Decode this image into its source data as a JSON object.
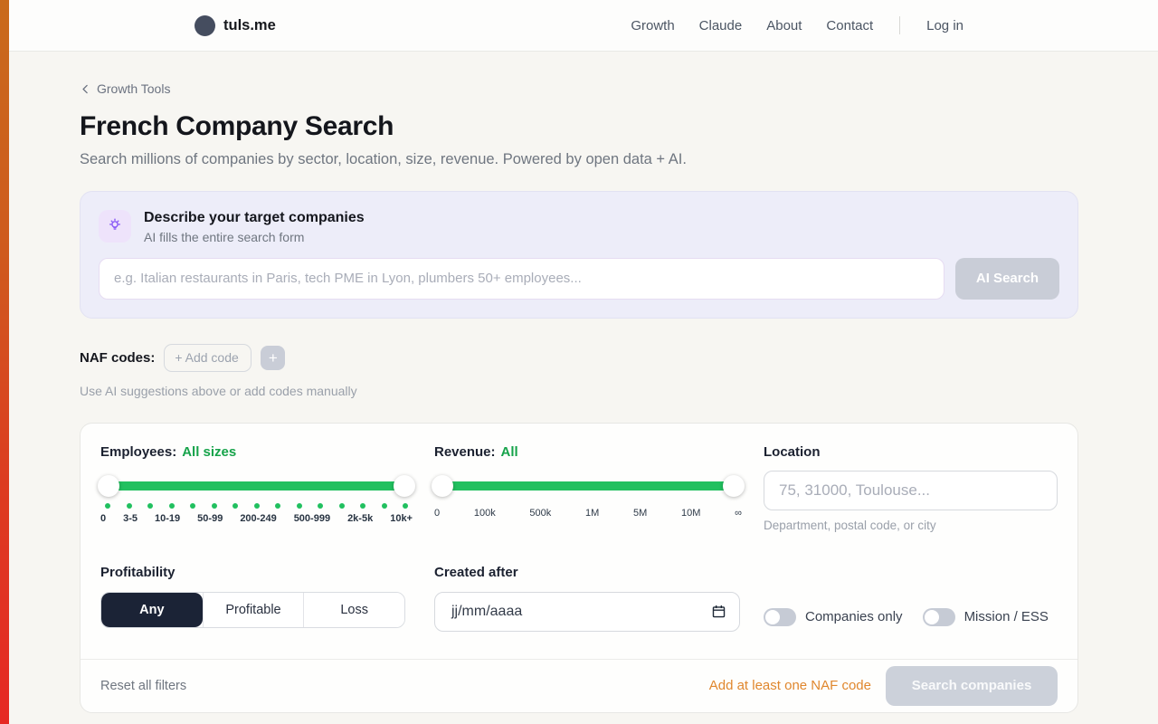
{
  "header": {
    "brand": "tuls.me",
    "nav": [
      {
        "label": "Growth"
      },
      {
        "label": "Claude"
      },
      {
        "label": "About"
      },
      {
        "label": "Contact"
      }
    ],
    "login_label": "Log in"
  },
  "page": {
    "breadcrumb": "Growth Tools",
    "title": "French Company Search",
    "subtitle": "Search millions of companies by sector, location, size, revenue. Powered by open data + AI."
  },
  "ai_box": {
    "title": "Describe your target companies",
    "subtitle": "AI fills the entire search form",
    "input_placeholder": "e.g. Italian restaurants in Paris, tech PME in Lyon, plumbers 50+ employees...",
    "button_label": "AI Search"
  },
  "naf": {
    "label": "NAF codes:",
    "add_code_placeholder": "+ Add code",
    "plus_label": "+",
    "helper": "Use AI suggestions above or add codes manually"
  },
  "filters": {
    "employees": {
      "label": "Employees:",
      "value": "All sizes",
      "dot_count": 15,
      "ticks": [
        "0",
        "3-5",
        "10-19",
        "50-99",
        "200-249",
        "500-999",
        "2k-5k",
        "10k+"
      ]
    },
    "revenue": {
      "label": "Revenue:",
      "value": "All",
      "ticks": [
        "0",
        "100k",
        "500k",
        "1M",
        "5M",
        "10M",
        "∞"
      ]
    },
    "location": {
      "label": "Location",
      "placeholder": "75, 31000, Toulouse...",
      "helper": "Department, postal code, or city"
    },
    "profitability": {
      "label": "Profitability",
      "options": [
        "Any",
        "Profitable",
        "Loss"
      ],
      "selected": "Any"
    },
    "created_after": {
      "label": "Created after",
      "value": "jj/mm/aaaa"
    },
    "toggles": [
      {
        "label": "Companies only",
        "on": false
      },
      {
        "label": "Mission / ESS",
        "on": false
      }
    ],
    "footer": {
      "reset_label": "Reset all filters",
      "warning": "Add at least one NAF code",
      "search_label": "Search companies"
    }
  },
  "icons": {
    "logo": "dark-circle",
    "breadcrumb": "chevron-left",
    "ai_panel": "lightbulb",
    "naf_add": "plus",
    "created_after": "calendar",
    "revenue_max": "infinity"
  },
  "colors": {
    "accent_green_text": "#16a34a",
    "slider_green": "#21c05f",
    "purple": "#8b5cf6",
    "warning_orange": "#e0872e",
    "selected_segment": "#1b2336",
    "strip_gradient_top": "#c96a1b",
    "strip_gradient_bottom": "#e62823",
    "disabled_button": "#c9cdd7"
  }
}
